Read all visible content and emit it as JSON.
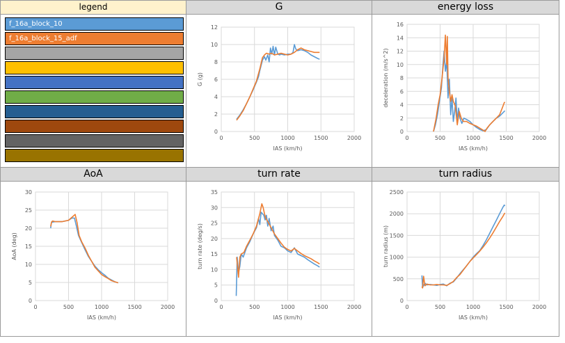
{
  "legend": {
    "title": "legend",
    "entries": [
      {
        "label": "f_16a_block_10",
        "color": "#5b9bd5"
      },
      {
        "label": "f_16a_block_15_adf",
        "color": "#ed7d31"
      },
      {
        "label": "",
        "color": "#a5a5a5"
      },
      {
        "label": "",
        "color": "#ffc000"
      },
      {
        "label": "",
        "color": "#4472c4"
      },
      {
        "label": "",
        "color": "#70ad47"
      },
      {
        "label": "",
        "color": "#255e91"
      },
      {
        "label": "",
        "color": "#9e480e"
      },
      {
        "label": "",
        "color": "#636363"
      },
      {
        "label": "",
        "color": "#997300"
      }
    ]
  },
  "chart_data": [
    {
      "id": "g",
      "type": "line",
      "title": "G",
      "xlabel": "IAS (km/h)",
      "ylabel": "G (g)",
      "xlim": [
        0,
        2000
      ],
      "xticks": [
        0,
        500,
        1000,
        1500,
        2000
      ],
      "ylim": [
        0,
        12
      ],
      "yticks": [
        0,
        2,
        4,
        6,
        8,
        10,
        12
      ],
      "grid": true,
      "series": [
        {
          "name": "f_16a_block_10",
          "color": "#5b9bd5",
          "x": [
            230,
            280,
            330,
            380,
            430,
            480,
            530,
            560,
            580,
            600,
            620,
            650,
            670,
            700,
            720,
            740,
            760,
            780,
            800,
            820,
            850,
            880,
            900,
            950,
            1000,
            1050,
            1080,
            1100,
            1120,
            1150,
            1200,
            1250,
            1300,
            1350,
            1400,
            1450,
            1480
          ],
          "y": [
            1.4,
            1.9,
            2.5,
            3.2,
            4.0,
            4.8,
            5.7,
            6.3,
            7.0,
            7.6,
            8.2,
            8.6,
            8.2,
            8.8,
            8.0,
            9.6,
            8.9,
            9.8,
            8.8,
            9.7,
            8.9,
            8.8,
            8.9,
            8.8,
            8.9,
            8.9,
            9.1,
            10.0,
            9.5,
            9.3,
            9.4,
            9.3,
            9.1,
            8.8,
            8.6,
            8.4,
            8.3
          ]
        },
        {
          "name": "f_16a_block_15_adf",
          "color": "#ed7d31",
          "x": [
            230,
            280,
            330,
            380,
            430,
            480,
            530,
            580,
            620,
            650,
            680,
            720,
            760,
            800,
            850,
            900,
            950,
            1000,
            1050,
            1100,
            1150,
            1200,
            1250,
            1300,
            1350,
            1400,
            1450,
            1480
          ],
          "y": [
            1.3,
            1.8,
            2.4,
            3.2,
            4.0,
            4.9,
            5.8,
            7.2,
            8.5,
            8.8,
            9.0,
            8.9,
            9.0,
            8.8,
            8.9,
            9.0,
            8.9,
            8.8,
            8.9,
            9.1,
            9.4,
            9.6,
            9.4,
            9.3,
            9.2,
            9.1,
            9.1,
            9.1
          ]
        }
      ]
    },
    {
      "id": "energy",
      "type": "line",
      "title": "energy loss",
      "xlabel": "IAS (km/h)",
      "ylabel": "deceleration (m/s^2)",
      "xlim": [
        0,
        2000
      ],
      "xticks": [
        0,
        500,
        1000,
        1500,
        2000
      ],
      "ylim": [
        0,
        16
      ],
      "yticks": [
        0,
        2,
        4,
        6,
        8,
        10,
        12,
        14,
        16
      ],
      "grid": true,
      "series": [
        {
          "name": "f_16a_block_10",
          "color": "#5b9bd5",
          "x": [
            400,
            430,
            460,
            490,
            520,
            540,
            560,
            580,
            600,
            620,
            640,
            660,
            680,
            700,
            720,
            740,
            760,
            780,
            800,
            830,
            860,
            900,
            950,
            1000,
            1050,
            1100,
            1150,
            1200,
            1250,
            1300,
            1350,
            1400,
            1450,
            1480
          ],
          "y": [
            0,
            1.0,
            2.5,
            4.5,
            6.5,
            9.5,
            12.0,
            9.0,
            10.5,
            5.0,
            7.8,
            2.5,
            5.0,
            1.5,
            3.0,
            5.0,
            1.5,
            3.5,
            2.0,
            1.2,
            2.0,
            1.8,
            1.5,
            1.0,
            0.6,
            0.3,
            0.1,
            0.3,
            1.0,
            1.5,
            2.0,
            2.3,
            2.8,
            3.1
          ]
        },
        {
          "name": "f_16a_block_15_adf",
          "color": "#ed7d31",
          "x": [
            400,
            440,
            470,
            500,
            530,
            560,
            580,
            600,
            610,
            620,
            640,
            660,
            680,
            700,
            730,
            760,
            790,
            820,
            850,
            900,
            950,
            1000,
            1050,
            1100,
            1150,
            1180,
            1210,
            1250,
            1300,
            1350,
            1400,
            1440,
            1470,
            1480
          ],
          "y": [
            0,
            2.0,
            4.0,
            5.5,
            8.0,
            11.0,
            14.4,
            10.0,
            14.2,
            8.0,
            6.0,
            4.5,
            5.5,
            4.5,
            3.8,
            1.0,
            3.0,
            2.0,
            1.5,
            1.5,
            1.2,
            1.0,
            0.8,
            0.5,
            0.2,
            0,
            0.5,
            1.0,
            1.5,
            2.0,
            2.5,
            3.5,
            4.3,
            4.4
          ]
        }
      ]
    },
    {
      "id": "aoa",
      "type": "line",
      "title": "AoA",
      "xlabel": "IAS (km/h)",
      "ylabel": "AoA (deg)",
      "xlim": [
        0,
        2000
      ],
      "xticks": [
        0,
        500,
        1000,
        1500,
        2000
      ],
      "ylim": [
        0,
        30
      ],
      "yticks": [
        0,
        5,
        10,
        15,
        20,
        25,
        30
      ],
      "grid": true,
      "series": [
        {
          "name": "f_16a_block_10",
          "color": "#5b9bd5",
          "x": [
            230,
            240,
            260,
            300,
            400,
            500,
            550,
            590,
            620,
            650,
            700,
            750,
            800,
            850,
            900,
            950,
            1000,
            1050,
            1100,
            1150,
            1200,
            1250
          ],
          "y": [
            20.0,
            21.5,
            21.7,
            21.8,
            21.8,
            22.2,
            22.8,
            22.8,
            20.5,
            18.0,
            16.0,
            14.0,
            12.2,
            10.8,
            9.5,
            8.5,
            7.7,
            7.0,
            6.2,
            5.7,
            5.2,
            4.9
          ]
        },
        {
          "name": "f_16a_block_15_adf",
          "color": "#ed7d31",
          "x": [
            230,
            245,
            260,
            300,
            400,
            500,
            550,
            600,
            630,
            660,
            700,
            750,
            800,
            850,
            900,
            950,
            1000,
            1050,
            1100,
            1150,
            1200,
            1250
          ],
          "y": [
            20.5,
            21.8,
            22.0,
            21.8,
            21.8,
            22.2,
            23.0,
            23.8,
            21.5,
            18.0,
            16.2,
            14.5,
            12.5,
            10.8,
            9.2,
            8.2,
            7.2,
            6.6,
            6.1,
            5.5,
            5.2,
            4.9
          ]
        }
      ]
    },
    {
      "id": "turnrate",
      "type": "line",
      "title": "turn rate",
      "xlabel": "IAS (km/h)",
      "ylabel": "turn rate (deg/s)",
      "xlim": [
        0,
        2000
      ],
      "xticks": [
        0,
        500,
        1000,
        1500,
        2000
      ],
      "ylim": [
        0,
        35
      ],
      "yticks": [
        0,
        5,
        10,
        15,
        20,
        25,
        30,
        35
      ],
      "grid": true,
      "series": [
        {
          "name": "f_16a_block_10",
          "color": "#5b9bd5",
          "x": [
            225,
            240,
            260,
            280,
            300,
            330,
            380,
            430,
            480,
            530,
            560,
            580,
            600,
            620,
            640,
            660,
            680,
            700,
            720,
            750,
            780,
            800,
            850,
            900,
            950,
            1000,
            1050,
            1100,
            1150,
            1200,
            1250,
            1300,
            1350,
            1400,
            1450,
            1480
          ],
          "y": [
            1.5,
            14.0,
            9.0,
            11.0,
            15.0,
            14.0,
            17.0,
            19.0,
            21.5,
            23.5,
            26.5,
            24.5,
            28.5,
            28.0,
            27.5,
            26.0,
            27.5,
            24.0,
            26.5,
            22.5,
            24.0,
            21.0,
            19.5,
            17.5,
            17.0,
            16.0,
            15.5,
            17.0,
            15.0,
            14.5,
            14.0,
            13.2,
            12.5,
            11.8,
            11.2,
            10.8
          ]
        },
        {
          "name": "f_16a_block_15_adf",
          "color": "#ed7d31",
          "x": [
            230,
            245,
            260,
            280,
            300,
            340,
            380,
            430,
            480,
            530,
            580,
            610,
            630,
            650,
            670,
            700,
            750,
            800,
            850,
            900,
            950,
            1000,
            1050,
            1100,
            1150,
            1200,
            1250,
            1300,
            1350,
            1400,
            1450,
            1480
          ],
          "y": [
            14.0,
            11.0,
            7.5,
            14.0,
            15.0,
            15.5,
            17.5,
            19.5,
            21.5,
            24.0,
            28.0,
            31.2,
            30.0,
            28.0,
            26.5,
            25.5,
            23.5,
            21.5,
            20.0,
            18.5,
            17.2,
            16.5,
            16.0,
            16.8,
            16.0,
            15.2,
            14.5,
            14.0,
            13.5,
            12.8,
            12.2,
            11.8
          ]
        }
      ]
    },
    {
      "id": "turnradius",
      "type": "line",
      "title": "turn radius",
      "xlabel": "IAS (km/h)",
      "ylabel": "turn radius (m)",
      "xlim": [
        0,
        2000
      ],
      "xticks": [
        0,
        500,
        1000,
        1500,
        2000
      ],
      "ylim": [
        0,
        2500
      ],
      "yticks": [
        0,
        500,
        1000,
        1500,
        2000,
        2500
      ],
      "grid": true,
      "series": [
        {
          "name": "f_16a_block_10",
          "color": "#5b9bd5",
          "x": [
            225,
            235,
            250,
            270,
            300,
            350,
            400,
            450,
            500,
            550,
            600,
            650,
            700,
            750,
            800,
            850,
            900,
            950,
            1000,
            1050,
            1100,
            1150,
            1200,
            1250,
            1300,
            1350,
            1400,
            1450,
            1470,
            1480
          ],
          "y": [
            580,
            300,
            350,
            400,
            360,
            370,
            360,
            350,
            370,
            380,
            340,
            400,
            430,
            520,
            620,
            710,
            800,
            900,
            1000,
            1080,
            1150,
            1270,
            1400,
            1550,
            1700,
            1850,
            2000,
            2150,
            2200,
            2180
          ]
        },
        {
          "name": "f_16a_block_15_adf",
          "color": "#ed7d31",
          "x": [
            225,
            235,
            250,
            270,
            300,
            350,
            400,
            450,
            500,
            550,
            600,
            650,
            700,
            750,
            800,
            850,
            900,
            950,
            1000,
            1050,
            1100,
            1150,
            1200,
            1250,
            1300,
            1350,
            1400,
            1450,
            1480
          ],
          "y": [
            320,
            290,
            560,
            340,
            380,
            360,
            360,
            370,
            360,
            360,
            350,
            390,
            440,
            530,
            600,
            700,
            800,
            900,
            980,
            1060,
            1140,
            1230,
            1330,
            1440,
            1560,
            1690,
            1820,
            1940,
            2020
          ]
        }
      ]
    }
  ]
}
